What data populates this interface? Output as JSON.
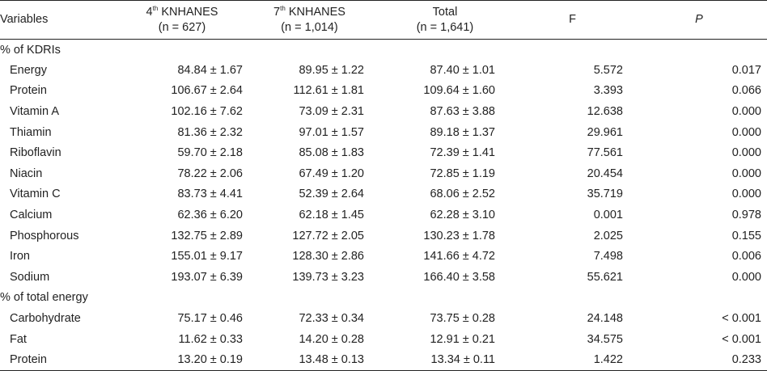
{
  "header": {
    "variables": "Variables",
    "col1_prefix": "4",
    "col1_sup": "th",
    "col1_name": " KNHANES",
    "col1_n": "(n = 627)",
    "col2_prefix": "7",
    "col2_sup": "th",
    "col2_name": " KNHANES",
    "col2_n": "(n = 1,014)",
    "col3_name": "Total",
    "col3_n": "(n = 1,641)",
    "col4": "F",
    "col5": "P"
  },
  "sections": [
    {
      "title": "% of KDRIs",
      "rows": [
        {
          "variable": "Energy",
          "k4": "84.84 ± 1.67",
          "k7": "89.95 ± 1.22",
          "total": "87.40 ± 1.01",
          "f": "5.572",
          "p": "0.017"
        },
        {
          "variable": "Protein",
          "k4": "106.67 ± 2.64",
          "k7": "112.61 ± 1.81",
          "total": "109.64 ± 1.60",
          "f": "3.393",
          "p": "0.066"
        },
        {
          "variable": "Vitamin A",
          "k4": "102.16 ± 7.62",
          "k7": "73.09 ± 2.31",
          "total": "87.63 ± 3.88",
          "f": "12.638",
          "p": "0.000"
        },
        {
          "variable": "Thiamin",
          "k4": "81.36 ± 2.32",
          "k7": "97.01 ± 1.57",
          "total": "89.18 ± 1.37",
          "f": "29.961",
          "p": "0.000"
        },
        {
          "variable": "Riboflavin",
          "k4": "59.70 ± 2.18",
          "k7": "85.08 ± 1.83",
          "total": "72.39 ± 1.41",
          "f": "77.561",
          "p": "0.000"
        },
        {
          "variable": "Niacin",
          "k4": "78.22 ± 2.06",
          "k7": "67.49 ± 1.20",
          "total": "72.85 ± 1.19",
          "f": "20.454",
          "p": "0.000"
        },
        {
          "variable": "Vitamin C",
          "k4": "83.73 ± 4.41",
          "k7": "52.39 ± 2.64",
          "total": "68.06 ± 2.52",
          "f": "35.719",
          "p": "0.000"
        },
        {
          "variable": "Calcium",
          "k4": "62.36 ± 6.20",
          "k7": "62.18 ± 1.45",
          "total": "62.28 ± 3.10",
          "f": "0.001",
          "p": "0.978"
        },
        {
          "variable": "Phosphorous",
          "k4": "132.75 ± 2.89",
          "k7": "127.72 ± 2.05",
          "total": "130.23 ± 1.78",
          "f": "2.025",
          "p": "0.155"
        },
        {
          "variable": "Iron",
          "k4": "155.01 ± 9.17",
          "k7": "128.30 ± 2.86",
          "total": "141.66 ± 4.72",
          "f": "7.498",
          "p": "0.006"
        },
        {
          "variable": "Sodium",
          "k4": "193.07 ± 6.39",
          "k7": "139.73 ± 3.23",
          "total": "166.40 ± 3.58",
          "f": "55.621",
          "p": "0.000"
        }
      ]
    },
    {
      "title": "% of total energy",
      "rows": [
        {
          "variable": "Carbohydrate",
          "k4": "75.17 ± 0.46",
          "k7": "72.33 ± 0.34",
          "total": "73.75 ± 0.28",
          "f": "24.148",
          "p": "< 0.001"
        },
        {
          "variable": "Fat",
          "k4": "11.62 ± 0.33",
          "k7": "14.20 ± 0.28",
          "total": "12.91 ± 0.21",
          "f": "34.575",
          "p": "< 0.001"
        },
        {
          "variable": "Protein",
          "k4": "13.20 ± 0.19",
          "k7": "13.48 ± 0.13",
          "total": "13.34 ± 0.11",
          "f": "1.422",
          "p": "0.233"
        }
      ]
    }
  ]
}
